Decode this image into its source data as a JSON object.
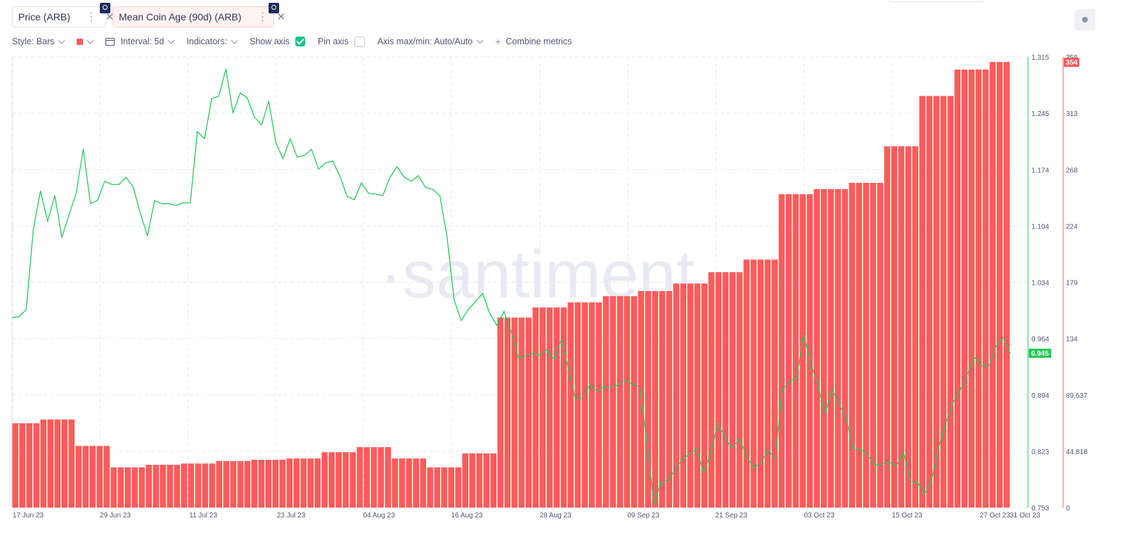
{
  "metrics": [
    {
      "label": "Price (ARB)",
      "color": "#26c95a"
    },
    {
      "label": "Mean Coin Age (90d) (ARB)",
      "color": "#ff5b5b"
    }
  ],
  "toolbar": {
    "style": "Style: Bars",
    "interval": "Interval: 5d",
    "indicators": "Indicators:",
    "show_axis": "Show axis",
    "pin_axis": "Pin axis",
    "axis_minmax": "Axis max/min: Auto/Auto",
    "combine": "Combine metrics"
  },
  "watermark": "·santiment.",
  "chart_data": {
    "type": "bar",
    "x_tick_labels": [
      "17 Jun 23",
      "29 Jun 23",
      "11 Jul 23",
      "23 Jul 23",
      "04 Aug 23",
      "16 Aug 23",
      "28 Aug 23",
      "09 Sep 23",
      "21 Sep 23",
      "03 Oct 23",
      "15 Oct 23",
      "27 Oct 23",
      "31 Oct 23"
    ],
    "price_axis_ticks": [
      "1.315",
      "1.245",
      "1.174",
      "1.104",
      "1.034",
      "0.964",
      "0.894",
      "0.823",
      "0.753"
    ],
    "age_axis_ticks": [
      "358",
      "313",
      "268",
      "224",
      "179",
      "134",
      "89.637",
      "44.818",
      "0"
    ],
    "price_axis_range": [
      0.753,
      1.315
    ],
    "age_axis_range": [
      0,
      358
    ],
    "last_price_label": "0.945",
    "last_age_label": "354",
    "grid": true,
    "series": [
      {
        "name": "Price (ARB)",
        "type": "line",
        "color": "#26c95a",
        "values": [
          0.99,
          0.991,
          1.0,
          1.1,
          1.148,
          1.11,
          1.142,
          1.09,
          1.118,
          1.145,
          1.2,
          1.132,
          1.136,
          1.16,
          1.156,
          1.156,
          1.165,
          1.153,
          1.12,
          1.092,
          1.136,
          1.132,
          1.132,
          1.13,
          1.133,
          1.133,
          1.222,
          1.213,
          1.263,
          1.266,
          1.3,
          1.245,
          1.27,
          1.264,
          1.24,
          1.23,
          1.26,
          1.208,
          1.188,
          1.213,
          1.19,
          1.192,
          1.2,
          1.175,
          1.183,
          1.185,
          1.166,
          1.141,
          1.137,
          1.158,
          1.145,
          1.144,
          1.142,
          1.165,
          1.178,
          1.165,
          1.16,
          1.167,
          1.152,
          1.15,
          1.142,
          1.091,
          1.012,
          0.986,
          1.0,
          1.01,
          1.02,
          0.995,
          0.98,
          0.998,
          0.972,
          0.94,
          0.942,
          0.945,
          0.943,
          0.95,
          0.938,
          0.962,
          0.928,
          0.888,
          0.89,
          0.906,
          0.898,
          0.903,
          0.903,
          0.906,
          0.912,
          0.907,
          0.904,
          0.838,
          0.758,
          0.784,
          0.788,
          0.8,
          0.813,
          0.82,
          0.826,
          0.796,
          0.822,
          0.858,
          0.84,
          0.827,
          0.839,
          0.817,
          0.803,
          0.808,
          0.825,
          0.814,
          0.9,
          0.91,
          0.914,
          0.968,
          0.934,
          0.905,
          0.87,
          0.9,
          0.882,
          0.863,
          0.825,
          0.826,
          0.818,
          0.806,
          0.807,
          0.81,
          0.805,
          0.822,
          0.786,
          0.784,
          0.77,
          0.79,
          0.83,
          0.86,
          0.885,
          0.9,
          0.92,
          0.94,
          0.93,
          0.93,
          0.955,
          0.965,
          0.945
        ]
      },
      {
        "name": "Mean Coin Age (90d) (ARB)",
        "type": "bar",
        "color": "#ff5b5b",
        "values": [
          67,
          67,
          67,
          67,
          70,
          70,
          70,
          70,
          70,
          49,
          49,
          49,
          49,
          49,
          32,
          32,
          32,
          32,
          32,
          34,
          34,
          34,
          34,
          34,
          35,
          35,
          35,
          35,
          35,
          37,
          37,
          37,
          37,
          37,
          38,
          38,
          38,
          38,
          38,
          39,
          39,
          39,
          39,
          39,
          44,
          44,
          44,
          44,
          44,
          48,
          48,
          48,
          48,
          48,
          39,
          39,
          39,
          39,
          39,
          32,
          32,
          32,
          32,
          32,
          43,
          43,
          43,
          43,
          43,
          151,
          151,
          151,
          151,
          151,
          159,
          159,
          159,
          159,
          159,
          163,
          163,
          163,
          163,
          163,
          168,
          168,
          168,
          168,
          168,
          172,
          172,
          172,
          172,
          172,
          178,
          178,
          178,
          178,
          178,
          187,
          187,
          187,
          187,
          187,
          197,
          197,
          197,
          197,
          197,
          249,
          249,
          249,
          249,
          249,
          253,
          253,
          253,
          253,
          253,
          258,
          258,
          258,
          258,
          258,
          287,
          287,
          287,
          287,
          287,
          327,
          327,
          327,
          327,
          327,
          348,
          348,
          348,
          348,
          348,
          354,
          354,
          354
        ]
      }
    ]
  }
}
